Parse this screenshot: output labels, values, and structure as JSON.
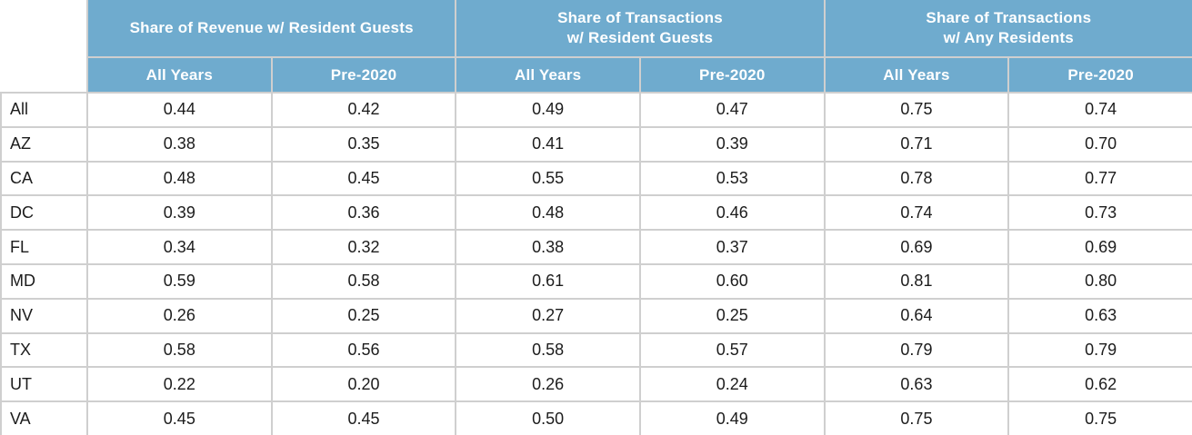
{
  "colors": {
    "header_bg": "#6FABCE",
    "header_text": "#FFFFFF",
    "border": "#CFCFCF",
    "body_text": "#1C1C1C",
    "page_bg": "#FFFFFF"
  },
  "chart_data": {
    "type": "table",
    "row_header_label": "",
    "column_groups": [
      {
        "label": "Share of Revenue w/ Resident Guests",
        "columns": [
          "All Years",
          "Pre-2020"
        ]
      },
      {
        "label": "Share of Transactions\nw/ Resident Guests",
        "columns": [
          "All Years",
          "Pre-2020"
        ]
      },
      {
        "label": "Share of Transactions\nw/ Any Residents",
        "columns": [
          "All Years",
          "Pre-2020"
        ]
      }
    ],
    "rows": [
      {
        "label": "All",
        "values": [
          0.44,
          0.42,
          0.49,
          0.47,
          0.75,
          0.74
        ]
      },
      {
        "label": "AZ",
        "values": [
          0.38,
          0.35,
          0.41,
          0.39,
          0.71,
          0.7
        ]
      },
      {
        "label": "CA",
        "values": [
          0.48,
          0.45,
          0.55,
          0.53,
          0.78,
          0.77
        ]
      },
      {
        "label": "DC",
        "values": [
          0.39,
          0.36,
          0.48,
          0.46,
          0.74,
          0.73
        ]
      },
      {
        "label": "FL",
        "values": [
          0.34,
          0.32,
          0.38,
          0.37,
          0.69,
          0.69
        ]
      },
      {
        "label": "MD",
        "values": [
          0.59,
          0.58,
          0.61,
          0.6,
          0.81,
          0.8
        ]
      },
      {
        "label": "NV",
        "values": [
          0.26,
          0.25,
          0.27,
          0.25,
          0.64,
          0.63
        ]
      },
      {
        "label": "TX",
        "values": [
          0.58,
          0.56,
          0.58,
          0.57,
          0.79,
          0.79
        ]
      },
      {
        "label": "UT",
        "values": [
          0.22,
          0.2,
          0.26,
          0.24,
          0.63,
          0.62
        ]
      },
      {
        "label": "VA",
        "values": [
          0.45,
          0.45,
          0.5,
          0.49,
          0.75,
          0.75
        ]
      }
    ],
    "value_decimals": 2
  }
}
